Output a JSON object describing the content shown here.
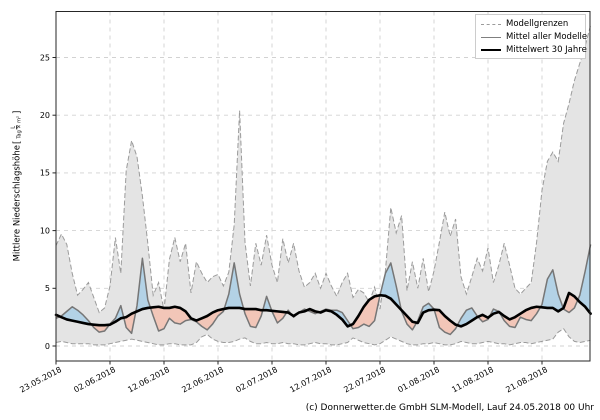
{
  "figure": {
    "footer": "(c) Donnerwetter.de GmbH SLM-Modell, Lauf 24.05.2018 00 Uhr",
    "y_axis_label": "Mittlere Niederschlagshöhe",
    "y_axis_unit_open_bracket": "[",
    "y_axis_unit_numerator": "L",
    "y_axis_unit_denominator": "Tag × m²",
    "y_axis_unit_close_bracket": "]"
  },
  "legend": {
    "position": "upper right",
    "items": [
      {
        "label": "Modellgrenzen",
        "style": "dashed-gray"
      },
      {
        "label": "Mittel aller Modelle",
        "style": "solid-gray"
      },
      {
        "label": "Mittelwert 30 Jahre",
        "style": "solid-black-thick"
      }
    ]
  },
  "chart_data": {
    "type": "line",
    "title": "",
    "xlabel": "",
    "ylabel": "Mittlere Niederschlagshöhe [L/(Tag × m²)]",
    "grid": true,
    "ylim": [
      -1.3,
      29.0
    ],
    "y_ticks": [
      0,
      5,
      10,
      15,
      20,
      25
    ],
    "x_start_date": "23.05.2018",
    "n_days": 100,
    "x_tick_labels": [
      "23.05.2018",
      "02.06.2018",
      "12.06.2018",
      "22.06.2018",
      "02.07.2018",
      "12.07.2018",
      "22.07.2018",
      "01.08.2018",
      "11.08.2018",
      "21.08.2018"
    ],
    "x_tick_days": [
      0,
      10,
      20,
      30,
      40,
      50,
      60,
      70,
      80,
      90
    ],
    "series": [
      {
        "name": "Modellgrenze oben",
        "role": "upper_bound",
        "values": [
          8.7,
          9.7,
          8.8,
          6.3,
          4.4,
          4.9,
          5.5,
          4.2,
          2.9,
          3.3,
          5.2,
          9.4,
          6.3,
          15.2,
          17.8,
          16.4,
          13.0,
          8.9,
          4.4,
          5.5,
          3.1,
          7.5,
          9.4,
          7.3,
          8.9,
          4.6,
          7.3,
          6.3,
          5.5,
          6.0,
          6.2,
          5.2,
          6.4,
          10.5,
          20.4,
          9.0,
          5.2,
          8.9,
          7.0,
          9.6,
          7.0,
          5.5,
          9.3,
          7.2,
          8.9,
          6.5,
          5.1,
          5.5,
          6.3,
          5.0,
          6.3,
          5.2,
          4.3,
          5.5,
          6.3,
          4.2,
          4.9,
          4.6,
          3.8,
          5.1,
          3.2,
          6.5,
          12.0,
          9.8,
          11.3,
          4.8,
          7.3,
          5.0,
          7.6,
          4.7,
          6.5,
          9.0,
          11.6,
          9.5,
          11.0,
          6.0,
          4.5,
          6.0,
          7.6,
          6.5,
          8.5,
          5.5,
          7.0,
          8.9,
          7.0,
          5.0,
          4.5,
          5.0,
          5.5,
          9.0,
          13.5,
          16.0,
          16.8,
          16.0,
          19.3,
          21.0,
          23.0,
          24.5,
          26.0,
          27.8
        ]
      },
      {
        "name": "Modellgrenze unten",
        "role": "lower_bound",
        "values": [
          0.3,
          0.4,
          0.3,
          0.2,
          0.2,
          0.2,
          0.2,
          0.1,
          0.1,
          0.1,
          0.2,
          0.3,
          0.4,
          0.5,
          0.6,
          0.5,
          0.4,
          0.3,
          0.2,
          0.1,
          0.1,
          0.2,
          0.2,
          0.1,
          0.1,
          0.1,
          0.3,
          0.8,
          1.0,
          0.6,
          0.4,
          0.3,
          0.3,
          0.4,
          0.6,
          0.7,
          0.4,
          0.2,
          0.2,
          0.3,
          0.2,
          0.2,
          0.3,
          0.2,
          0.2,
          0.1,
          0.1,
          0.2,
          0.3,
          0.2,
          0.2,
          0.1,
          0.1,
          0.2,
          0.3,
          0.7,
          0.5,
          0.3,
          0.2,
          0.1,
          0.2,
          0.5,
          0.8,
          0.6,
          0.4,
          0.2,
          0.1,
          0.1,
          0.2,
          0.2,
          0.3,
          0.2,
          0.1,
          0.1,
          0.2,
          0.4,
          0.3,
          0.2,
          0.2,
          0.3,
          0.4,
          0.3,
          0.2,
          0.2,
          0.1,
          0.2,
          0.3,
          0.3,
          0.2,
          0.3,
          0.4,
          0.5,
          0.6,
          1.2,
          1.5,
          0.8,
          0.4,
          0.3,
          0.4,
          0.5
        ]
      },
      {
        "name": "Mittel aller Modelle",
        "role": "model_mean",
        "values": [
          2.4,
          2.6,
          3.0,
          3.4,
          3.1,
          2.7,
          2.2,
          1.6,
          1.2,
          1.3,
          1.9,
          2.4,
          3.5,
          1.6,
          1.1,
          3.5,
          7.6,
          4.0,
          2.6,
          1.3,
          1.5,
          2.4,
          2.0,
          1.9,
          2.2,
          2.3,
          2.1,
          1.7,
          1.4,
          1.9,
          2.6,
          3.0,
          4.5,
          7.2,
          4.5,
          2.8,
          1.7,
          1.6,
          2.6,
          4.3,
          3.0,
          2.0,
          2.4,
          3.1,
          2.5,
          2.9,
          3.2,
          3.0,
          2.8,
          3.0,
          3.2,
          3.1,
          3.1,
          2.9,
          2.2,
          1.5,
          1.6,
          1.9,
          1.7,
          2.2,
          4.4,
          6.3,
          7.2,
          5.2,
          3.0,
          1.9,
          1.4,
          2.2,
          3.4,
          3.7,
          3.2,
          1.6,
          1.2,
          1.0,
          1.5,
          2.4,
          3.1,
          3.3,
          2.6,
          2.1,
          2.3,
          3.2,
          3.0,
          2.2,
          1.7,
          1.6,
          2.5,
          2.3,
          2.2,
          2.8,
          3.6,
          5.8,
          6.6,
          4.5,
          3.2,
          2.9,
          3.3,
          4.4,
          6.5,
          8.8
        ]
      },
      {
        "name": "Mittelwert 30 Jahre",
        "role": "climate_mean",
        "values": [
          2.7,
          2.5,
          2.3,
          2.2,
          2.1,
          2.0,
          1.9,
          1.85,
          1.8,
          1.8,
          1.85,
          2.1,
          2.4,
          2.5,
          2.8,
          3.0,
          3.2,
          3.3,
          3.35,
          3.4,
          3.3,
          3.3,
          3.4,
          3.3,
          3.0,
          2.4,
          2.2,
          2.4,
          2.6,
          2.9,
          3.1,
          3.2,
          3.3,
          3.3,
          3.3,
          3.2,
          3.2,
          3.2,
          3.1,
          3.1,
          3.05,
          3.0,
          2.95,
          2.9,
          2.6,
          2.9,
          3.0,
          3.2,
          3.0,
          2.9,
          3.1,
          3.0,
          2.7,
          2.3,
          1.7,
          1.9,
          2.6,
          3.4,
          4.0,
          4.3,
          4.4,
          4.35,
          4.1,
          3.6,
          3.1,
          2.6,
          2.1,
          2.0,
          2.9,
          3.1,
          3.15,
          3.1,
          2.6,
          2.2,
          1.85,
          1.7,
          1.9,
          2.2,
          2.5,
          2.7,
          2.45,
          2.8,
          2.95,
          2.6,
          2.3,
          2.5,
          2.8,
          3.1,
          3.3,
          3.4,
          3.35,
          3.3,
          3.3,
          3.0,
          3.3,
          4.6,
          4.3,
          3.8,
          3.4,
          2.8
        ]
      }
    ],
    "colors": {
      "envelope_fill": "#e4e4e4",
      "envelope_boundary": "#9b9b9b",
      "model_mean_line": "#767676",
      "climate_mean_line": "#000000",
      "above_fill": "#b3d2e6",
      "below_fill": "#f2c6b8",
      "grid": "#d2d2d2",
      "spine": "#262626"
    }
  }
}
